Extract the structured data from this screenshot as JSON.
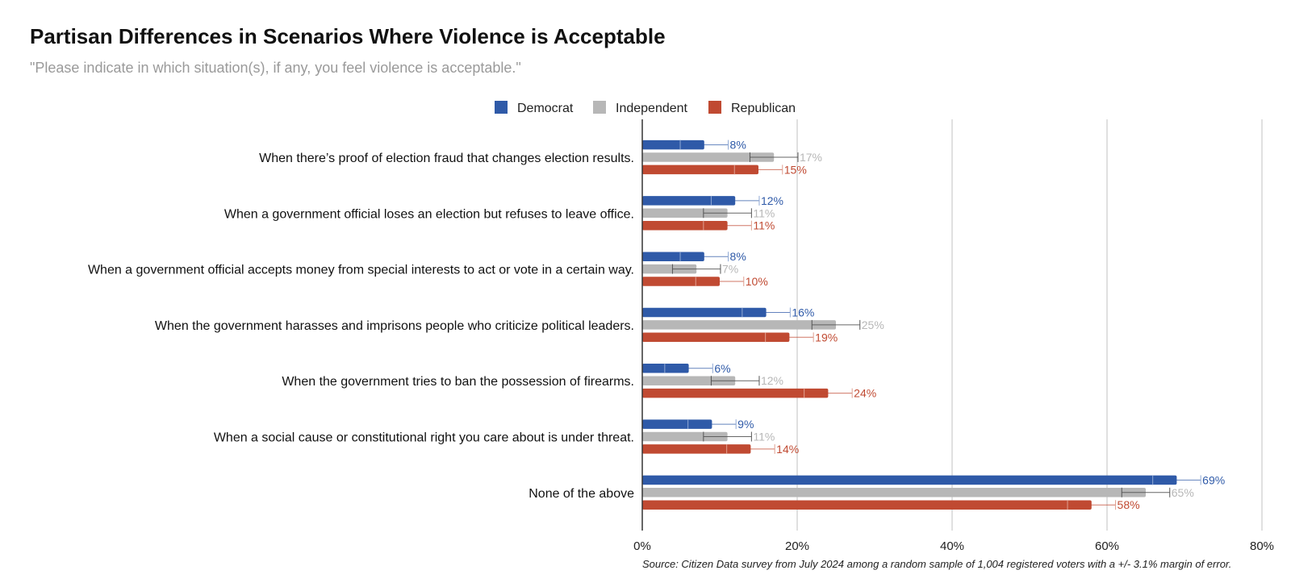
{
  "title": "Partisan Differences in Scenarios Where Violence is Acceptable",
  "subtitle": "\"Please indicate in which situation(s), if any, you feel violence is acceptable.\"",
  "source": "Source: Citizen Data survey from July 2024 among a random sample of 1,004 registered voters with a +/- 3.1% margin of error.",
  "chart_data": {
    "type": "bar",
    "orientation": "horizontal",
    "categories": [
      "When there’s proof of election fraud that changes election results.",
      "When a government official loses an election but refuses to leave office.",
      "When a government official accepts money from special interests to act or vote in a certain way.",
      "When the government harasses and imprisons people who criticize political leaders.",
      "When the government tries to ban the possession of firearms.",
      "When a social cause or constitutional right you care about is under threat.",
      "None of the above"
    ],
    "series": [
      {
        "name": "Democrat",
        "color": "#2f5aa8",
        "values": [
          8,
          12,
          8,
          16,
          6,
          9,
          69
        ],
        "labels": [
          "8%",
          "12%",
          "8%",
          "16%",
          "6%",
          "9%",
          "69%"
        ]
      },
      {
        "name": "Independent",
        "color": "#b7b7b7",
        "values": [
          17,
          11,
          7,
          25,
          12,
          11,
          65
        ],
        "labels": [
          "17%",
          "11%",
          "7%",
          "25%",
          "12%",
          "11%",
          "65%"
        ]
      },
      {
        "name": "Republican",
        "color": "#c04a32",
        "values": [
          15,
          11,
          10,
          19,
          24,
          14,
          58
        ],
        "labels": [
          "15%",
          "11%",
          "10%",
          "19%",
          "24%",
          "14%",
          "58%"
        ]
      }
    ],
    "error_margin": 3.1,
    "xlim": [
      0,
      80
    ],
    "xticks": [
      0,
      20,
      40,
      60,
      80
    ],
    "xtick_labels": [
      "0%",
      "20%",
      "40%",
      "60%",
      "80%"
    ],
    "grid": true,
    "legend_position": "top"
  }
}
